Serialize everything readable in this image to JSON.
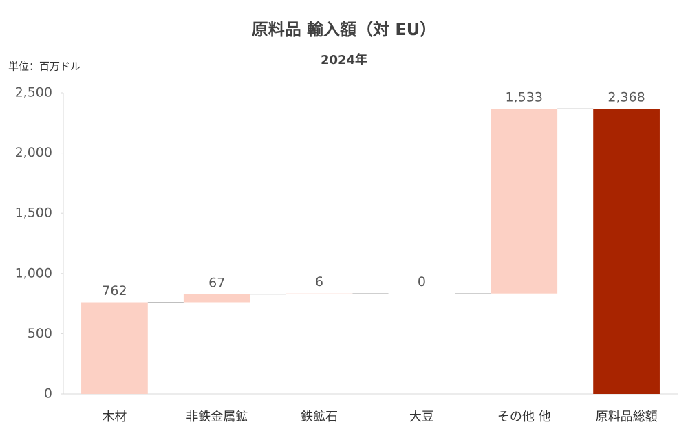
{
  "chart_data": {
    "type": "waterfall",
    "title": "原料品 輸入額（対 EU）",
    "subtitle": "2024年",
    "unit_label": "単位：百万ドル",
    "categories": [
      "木材",
      "非鉄金属鉱",
      "鉄鉱石",
      "大豆",
      "その他 他",
      "原料品総額"
    ],
    "values": [
      762,
      67,
      6,
      0,
      1533,
      2368
    ],
    "value_labels": [
      "762",
      "67",
      "6",
      "0",
      "1,533",
      "2,368"
    ],
    "is_total": [
      false,
      false,
      false,
      false,
      false,
      true
    ],
    "colors": [
      "#fcd0c4",
      "#fcd0c4",
      "#fcd0c4",
      "#fcd0c4",
      "#fcd0c4",
      "#a82400"
    ],
    "ylim": [
      0,
      2500
    ],
    "yticks": [
      0,
      500,
      {
        "value": 1000,
        "label": "1,000"
      },
      {
        "value": 1500,
        "label": "1,500"
      },
      {
        "value": 2000,
        "label": "2,000"
      },
      {
        "value": 2500,
        "label": "2,500"
      }
    ],
    "grid": false
  }
}
